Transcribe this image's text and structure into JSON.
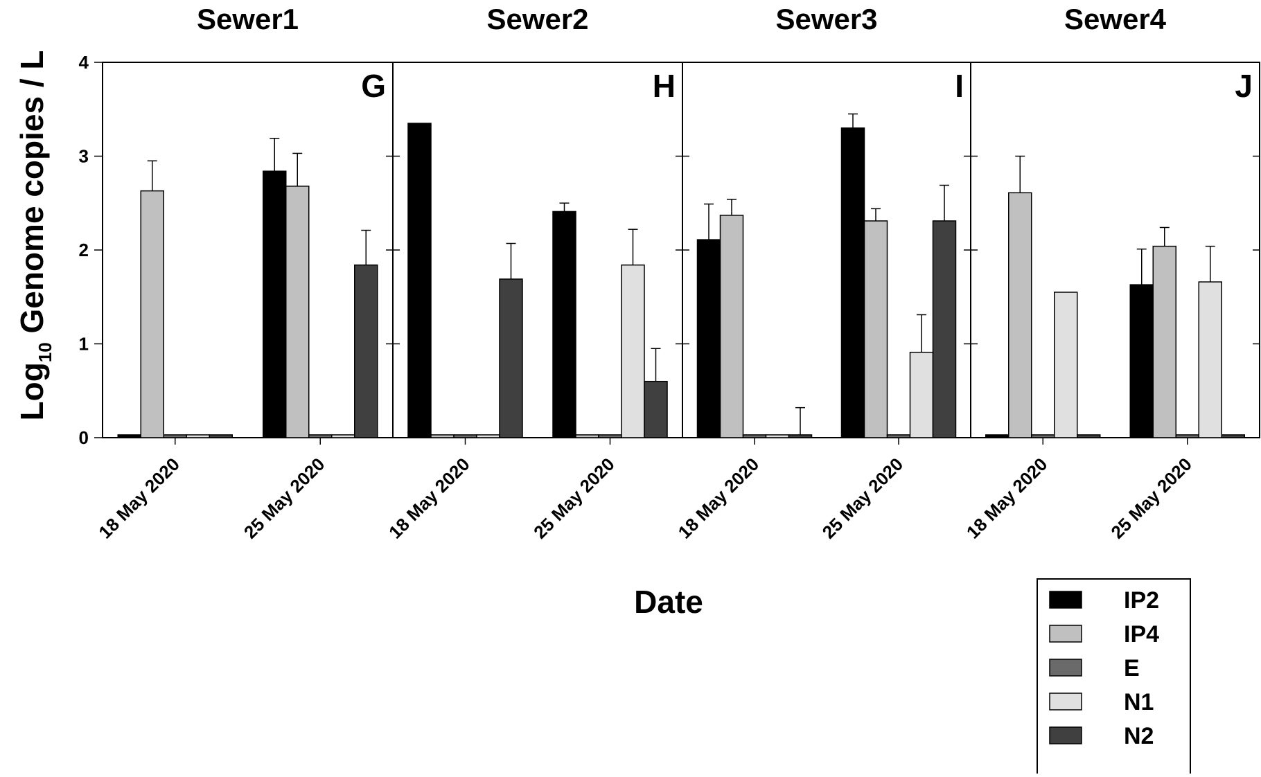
{
  "chart_data": {
    "type": "bar",
    "xlabel": "Date",
    "ylabel": {
      "prefix": "Log",
      "subscript": "10",
      "suffix": " Genome copies / L"
    },
    "ylim": [
      0,
      4
    ],
    "yticks": [
      "0",
      "1",
      "2",
      "3",
      "4"
    ],
    "categories": [
      "18 May 2020",
      "25 May 2020"
    ],
    "legend_position": "bottom-right",
    "series_meta": [
      {
        "name": "IP2",
        "color": "#000000"
      },
      {
        "name": "IP4",
        "color": "#c0c0c0"
      },
      {
        "name": "E",
        "color": "#6a6a6a"
      },
      {
        "name": "N1",
        "color": "#e0e0e0"
      },
      {
        "name": "N2",
        "color": "#404040"
      }
    ],
    "panels": [
      {
        "title": "Sewer1",
        "letter": "G",
        "series": [
          {
            "name": "IP2",
            "values": [
              0.03,
              2.84
            ],
            "errors": [
              null,
              0.35
            ]
          },
          {
            "name": "IP4",
            "values": [
              2.63,
              2.68
            ],
            "errors": [
              0.32,
              0.35
            ]
          },
          {
            "name": "E",
            "values": [
              0.03,
              0.03
            ],
            "errors": [
              null,
              null
            ]
          },
          {
            "name": "N1",
            "values": [
              0.03,
              0.03
            ],
            "errors": [
              null,
              null
            ]
          },
          {
            "name": "N2",
            "values": [
              0.03,
              1.84
            ],
            "errors": [
              null,
              0.37
            ]
          }
        ]
      },
      {
        "title": "Sewer2",
        "letter": "H",
        "series": [
          {
            "name": "IP2",
            "values": [
              3.35,
              2.41
            ],
            "errors": [
              null,
              0.09
            ]
          },
          {
            "name": "IP4",
            "values": [
              0.03,
              0.03
            ],
            "errors": [
              null,
              null
            ]
          },
          {
            "name": "E",
            "values": [
              0.03,
              0.03
            ],
            "errors": [
              null,
              null
            ]
          },
          {
            "name": "N1",
            "values": [
              0.03,
              1.84
            ],
            "errors": [
              null,
              0.38
            ]
          },
          {
            "name": "N2",
            "values": [
              1.69,
              0.6
            ],
            "errors": [
              0.38,
              0.35
            ]
          }
        ]
      },
      {
        "title": "Sewer3",
        "letter": "I",
        "series": [
          {
            "name": "IP2",
            "values": [
              2.11,
              3.3
            ],
            "errors": [
              0.38,
              0.15
            ]
          },
          {
            "name": "IP4",
            "values": [
              2.37,
              2.31
            ],
            "errors": [
              0.17,
              0.13
            ]
          },
          {
            "name": "E",
            "values": [
              0.03,
              0.03
            ],
            "errors": [
              null,
              null
            ]
          },
          {
            "name": "N1",
            "values": [
              0.03,
              0.91
            ],
            "errors": [
              null,
              0.4
            ]
          },
          {
            "name": "N2",
            "values": [
              0.03,
              2.31
            ],
            "errors": [
              0.29,
              0.38
            ]
          }
        ]
      },
      {
        "title": "Sewer4",
        "letter": "J",
        "series": [
          {
            "name": "IP2",
            "values": [
              0.03,
              1.63
            ],
            "errors": [
              null,
              0.38
            ]
          },
          {
            "name": "IP4",
            "values": [
              2.61,
              2.04
            ],
            "errors": [
              0.39,
              0.2
            ]
          },
          {
            "name": "E",
            "values": [
              0.03,
              0.03
            ],
            "errors": [
              null,
              null
            ]
          },
          {
            "name": "N1",
            "values": [
              1.55,
              1.66
            ],
            "errors": [
              null,
              0.38
            ]
          },
          {
            "name": "N2",
            "values": [
              0.03,
              0.03
            ],
            "errors": [
              null,
              null
            ]
          }
        ]
      }
    ]
  }
}
